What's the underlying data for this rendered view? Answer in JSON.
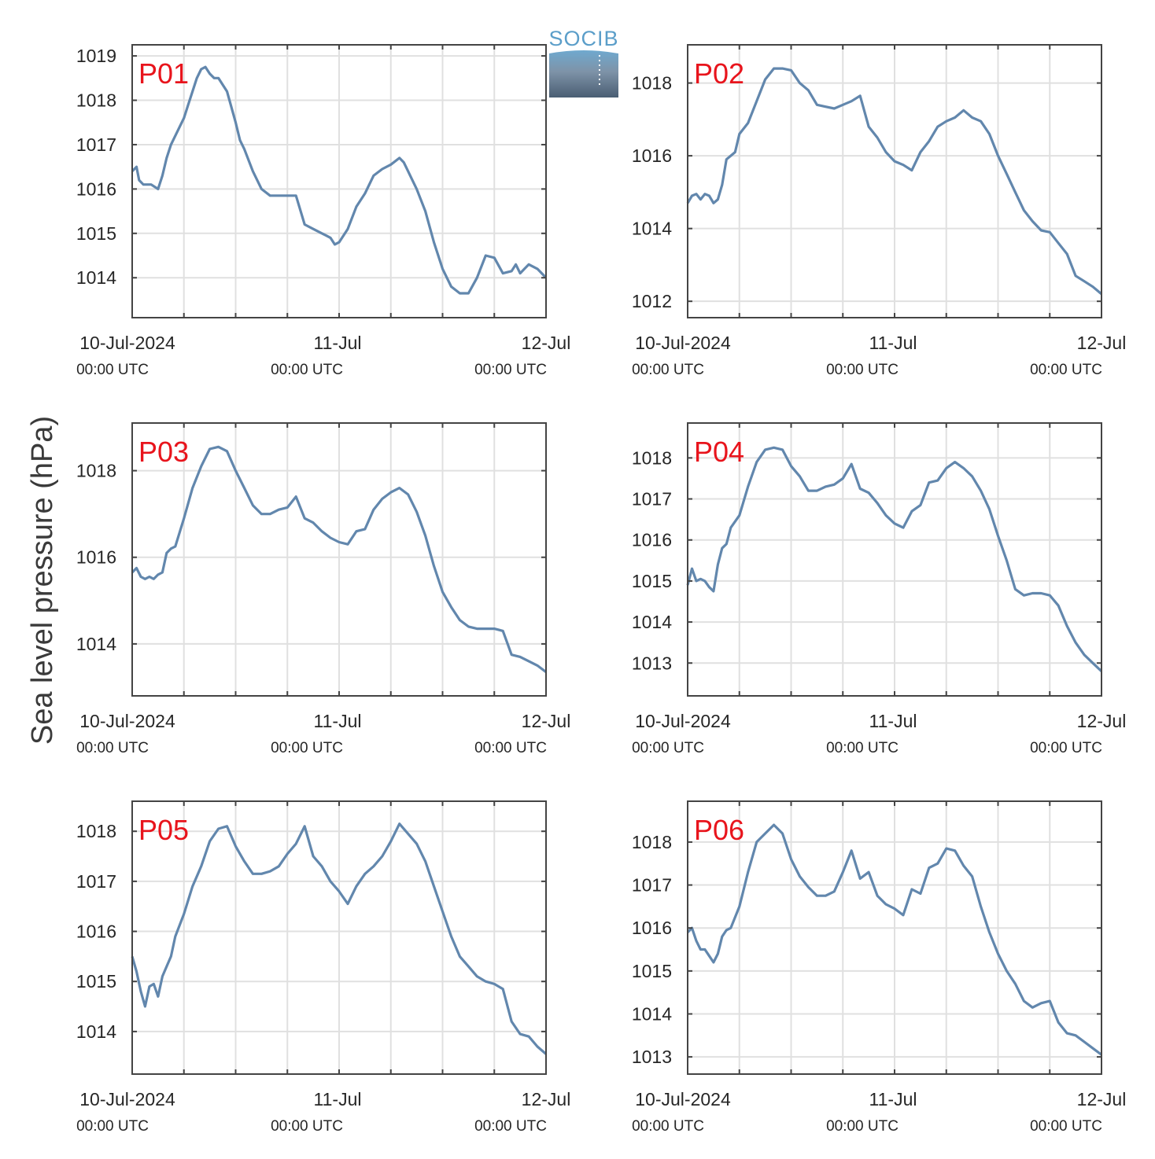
{
  "figure": {
    "ylabel": "Sea level pressure (hPa)",
    "logo_text": "SOCIB",
    "line_color": "#6287ad",
    "label_color": "#e8141c"
  },
  "chart_data": [
    {
      "type": "line",
      "panel": "P01",
      "x_ticks": [
        {
          "main": "10-Jul-2024",
          "sub": "00:00 UTC"
        },
        {
          "main": "11-Jul",
          "sub": "00:00 UTC"
        },
        {
          "main": "12-Jul",
          "sub": "00:00 UTC"
        }
      ],
      "x_tick_hours": [
        0,
        24,
        48
      ],
      "xlim_hours": [
        0,
        48
      ],
      "grid_hours": [
        6,
        12,
        18,
        24,
        30,
        36,
        42
      ],
      "ylim": [
        1013.1,
        1019.25
      ],
      "yticks": [
        1014,
        1015,
        1016,
        1017,
        1018,
        1019
      ],
      "grid": true,
      "series": [
        {
          "x": [
            0,
            0.5,
            0.8,
            1.3,
            2.2,
            3,
            3.5,
            4,
            4.5,
            5,
            6,
            6.5,
            7,
            7.5,
            8,
            8.5,
            9,
            9.5,
            10,
            11,
            12,
            12.5,
            13,
            14,
            15,
            16,
            17,
            18,
            19,
            20,
            21,
            22,
            22.5,
            23,
            23.5,
            24,
            25,
            26,
            27,
            28,
            29,
            30,
            31,
            31.5,
            32,
            32.5,
            33,
            34,
            35,
            36,
            37,
            38,
            39,
            40,
            41,
            42,
            43,
            44,
            44.5,
            45,
            45.5,
            46,
            47,
            48
          ],
          "y": [
            1016.4,
            1016.5,
            1016.2,
            1016.1,
            1016.1,
            1016.0,
            1016.3,
            1016.7,
            1017.0,
            1017.2,
            1017.6,
            1017.9,
            1018.2,
            1018.5,
            1018.7,
            1018.75,
            1018.6,
            1018.5,
            1018.5,
            1018.2,
            1017.5,
            1017.1,
            1016.9,
            1016.4,
            1016.0,
            1015.85,
            1015.85,
            1015.85,
            1015.85,
            1015.2,
            1015.1,
            1015.0,
            1014.95,
            1014.9,
            1014.75,
            1014.8,
            1015.1,
            1015.6,
            1015.9,
            1016.3,
            1016.45,
            1016.55,
            1016.7,
            1016.6,
            1016.4,
            1016.2,
            1016.0,
            1015.5,
            1014.8,
            1014.2,
            1013.8,
            1013.65,
            1013.65,
            1014.0,
            1014.5,
            1014.45,
            1014.1,
            1014.15,
            1014.3,
            1014.1,
            1014.2,
            1014.3,
            1014.2,
            1014.0
          ]
        }
      ]
    },
    {
      "type": "line",
      "panel": "P02",
      "x_ticks": [
        {
          "main": "10-Jul-2024",
          "sub": "00:00 UTC"
        },
        {
          "main": "11-Jul",
          "sub": "00:00 UTC"
        },
        {
          "main": "12-Jul",
          "sub": "00:00 UTC"
        }
      ],
      "x_tick_hours": [
        0,
        24,
        48
      ],
      "xlim_hours": [
        0,
        48
      ],
      "grid_hours": [
        6,
        12,
        18,
        24,
        30,
        36,
        42
      ],
      "ylim": [
        1011.55,
        1019.05
      ],
      "yticks": [
        1012,
        1014,
        1016,
        1018
      ],
      "grid": true,
      "series": [
        {
          "x": [
            0,
            0.5,
            1,
            1.5,
            2,
            2.5,
            3,
            3.5,
            4,
            4.5,
            5,
            5.5,
            6,
            7,
            8,
            9,
            10,
            11,
            12,
            13,
            14,
            15,
            16,
            17,
            18,
            19,
            20,
            21,
            22,
            23,
            24,
            25,
            26,
            27,
            28,
            29,
            30,
            31,
            32,
            33,
            34,
            35,
            36,
            37,
            38,
            39,
            40,
            41,
            42,
            43,
            44,
            45,
            46,
            47,
            48
          ],
          "y": [
            1014.7,
            1014.9,
            1014.95,
            1014.8,
            1014.95,
            1014.9,
            1014.7,
            1014.8,
            1015.2,
            1015.9,
            1016.0,
            1016.1,
            1016.6,
            1016.9,
            1017.5,
            1018.1,
            1018.4,
            1018.4,
            1018.35,
            1018.0,
            1017.8,
            1017.4,
            1017.35,
            1017.3,
            1017.4,
            1017.5,
            1017.65,
            1016.8,
            1016.5,
            1016.1,
            1015.85,
            1015.75,
            1015.6,
            1016.1,
            1016.4,
            1016.8,
            1016.95,
            1017.05,
            1017.25,
            1017.05,
            1016.95,
            1016.6,
            1016.0,
            1015.5,
            1015.0,
            1014.5,
            1014.2,
            1013.95,
            1013.9,
            1013.6,
            1013.3,
            1012.7,
            1012.55,
            1012.4,
            1012.2
          ]
        }
      ]
    },
    {
      "type": "line",
      "panel": "P03",
      "x_ticks": [
        {
          "main": "10-Jul-2024",
          "sub": "00:00 UTC"
        },
        {
          "main": "11-Jul",
          "sub": "00:00 UTC"
        },
        {
          "main": "12-Jul",
          "sub": "00:00 UTC"
        }
      ],
      "x_tick_hours": [
        0,
        24,
        48
      ],
      "xlim_hours": [
        0,
        48
      ],
      "grid_hours": [
        6,
        12,
        18,
        24,
        30,
        36,
        42
      ],
      "ylim": [
        1012.8,
        1019.1
      ],
      "yticks": [
        1014,
        1016,
        1018
      ],
      "grid": true,
      "series": [
        {
          "x": [
            0,
            0.5,
            1,
            1.5,
            2,
            2.5,
            3,
            3.5,
            4,
            4.5,
            5,
            6,
            7,
            8,
            9,
            10,
            11,
            12,
            13,
            14,
            15,
            16,
            17,
            18,
            19,
            20,
            21,
            22,
            23,
            24,
            25,
            26,
            27,
            28,
            29,
            30,
            31,
            32,
            33,
            34,
            35,
            36,
            37,
            38,
            39,
            40,
            41,
            42,
            43,
            44,
            45,
            46,
            47,
            48
          ],
          "y": [
            1015.65,
            1015.75,
            1015.55,
            1015.5,
            1015.55,
            1015.5,
            1015.6,
            1015.65,
            1016.1,
            1016.2,
            1016.25,
            1016.9,
            1017.6,
            1018.1,
            1018.5,
            1018.55,
            1018.45,
            1018.0,
            1017.6,
            1017.2,
            1017.0,
            1017.0,
            1017.1,
            1017.15,
            1017.4,
            1016.9,
            1016.8,
            1016.6,
            1016.45,
            1016.35,
            1016.3,
            1016.6,
            1016.65,
            1017.1,
            1017.35,
            1017.5,
            1017.6,
            1017.45,
            1017.05,
            1016.5,
            1015.8,
            1015.2,
            1014.85,
            1014.55,
            1014.4,
            1014.35,
            1014.35,
            1014.35,
            1014.3,
            1013.75,
            1013.7,
            1013.6,
            1013.5,
            1013.35
          ]
        }
      ]
    },
    {
      "type": "line",
      "panel": "P04",
      "x_ticks": [
        {
          "main": "10-Jul-2024",
          "sub": "00:00 UTC"
        },
        {
          "main": "11-Jul",
          "sub": "00:00 UTC"
        },
        {
          "main": "12-Jul",
          "sub": "00:00 UTC"
        }
      ],
      "x_tick_hours": [
        0,
        24,
        48
      ],
      "xlim_hours": [
        0,
        48
      ],
      "grid_hours": [
        6,
        12,
        18,
        24,
        30,
        36,
        42
      ],
      "ylim": [
        1012.2,
        1018.85
      ],
      "yticks": [
        1013,
        1014,
        1015,
        1016,
        1017,
        1018
      ],
      "grid": true,
      "series": [
        {
          "x": [
            0,
            0.5,
            1,
            1.5,
            2,
            2.5,
            3,
            3.5,
            4,
            4.5,
            5,
            6,
            7,
            8,
            9,
            10,
            11,
            12,
            13,
            14,
            15,
            16,
            17,
            18,
            19,
            20,
            21,
            22,
            23,
            24,
            25,
            26,
            27,
            28,
            29,
            30,
            31,
            32,
            33,
            34,
            35,
            36,
            37,
            38,
            39,
            40,
            41,
            42,
            43,
            44,
            45,
            46,
            47,
            48
          ],
          "y": [
            1014.9,
            1015.3,
            1015.0,
            1015.05,
            1015.0,
            1014.85,
            1014.75,
            1015.4,
            1015.8,
            1015.9,
            1016.3,
            1016.6,
            1017.3,
            1017.9,
            1018.2,
            1018.25,
            1018.2,
            1017.8,
            1017.55,
            1017.2,
            1017.2,
            1017.3,
            1017.35,
            1017.5,
            1017.85,
            1017.25,
            1017.15,
            1016.9,
            1016.6,
            1016.4,
            1016.3,
            1016.7,
            1016.85,
            1017.4,
            1017.45,
            1017.75,
            1017.9,
            1017.75,
            1017.55,
            1017.2,
            1016.75,
            1016.1,
            1015.5,
            1014.8,
            1014.65,
            1014.7,
            1014.7,
            1014.65,
            1014.4,
            1013.9,
            1013.5,
            1013.2,
            1013.0,
            1012.8
          ]
        }
      ]
    },
    {
      "type": "line",
      "panel": "P05",
      "x_ticks": [
        {
          "main": "10-Jul-2024",
          "sub": "00:00 UTC"
        },
        {
          "main": "11-Jul",
          "sub": "00:00 UTC"
        },
        {
          "main": "12-Jul",
          "sub": "00:00 UTC"
        }
      ],
      "x_tick_hours": [
        0,
        24,
        48
      ],
      "xlim_hours": [
        0,
        48
      ],
      "grid_hours": [
        6,
        12,
        18,
        24,
        30,
        36,
        42
      ],
      "ylim": [
        1013.15,
        1018.6
      ],
      "yticks": [
        1014,
        1015,
        1016,
        1017,
        1018
      ],
      "grid": true,
      "series": [
        {
          "x": [
            0,
            0.5,
            1,
            1.5,
            2,
            2.5,
            3,
            3.5,
            4,
            4.5,
            5,
            6,
            7,
            8,
            9,
            10,
            11,
            12,
            13,
            14,
            15,
            16,
            17,
            18,
            19,
            20,
            21,
            22,
            23,
            24,
            25,
            26,
            27,
            28,
            29,
            30,
            31,
            32,
            33,
            34,
            35,
            36,
            37,
            38,
            39,
            40,
            41,
            42,
            43,
            44,
            45,
            46,
            47,
            48
          ],
          "y": [
            1015.5,
            1015.2,
            1014.8,
            1014.5,
            1014.9,
            1014.95,
            1014.7,
            1015.1,
            1015.3,
            1015.5,
            1015.9,
            1016.35,
            1016.9,
            1017.3,
            1017.8,
            1018.05,
            1018.1,
            1017.7,
            1017.4,
            1017.15,
            1017.15,
            1017.2,
            1017.3,
            1017.55,
            1017.75,
            1018.1,
            1017.5,
            1017.3,
            1017.0,
            1016.8,
            1016.55,
            1016.9,
            1017.15,
            1017.3,
            1017.5,
            1017.8,
            1018.15,
            1017.95,
            1017.75,
            1017.4,
            1016.9,
            1016.4,
            1015.9,
            1015.5,
            1015.3,
            1015.1,
            1015.0,
            1014.95,
            1014.85,
            1014.2,
            1013.95,
            1013.9,
            1013.7,
            1013.55
          ]
        }
      ]
    },
    {
      "type": "line",
      "panel": "P06",
      "x_ticks": [
        {
          "main": "10-Jul-2024",
          "sub": "00:00 UTC"
        },
        {
          "main": "11-Jul",
          "sub": "00:00 UTC"
        },
        {
          "main": "12-Jul",
          "sub": "00:00 UTC"
        }
      ],
      "x_tick_hours": [
        0,
        24,
        48
      ],
      "xlim_hours": [
        0,
        48
      ],
      "grid_hours": [
        6,
        12,
        18,
        24,
        30,
        36,
        42
      ],
      "ylim": [
        1012.6,
        1018.95
      ],
      "yticks": [
        1013,
        1014,
        1015,
        1016,
        1017,
        1018
      ],
      "grid": true,
      "series": [
        {
          "x": [
            0,
            0.5,
            1,
            1.5,
            2,
            2.5,
            3,
            3.5,
            4,
            4.5,
            5,
            6,
            7,
            8,
            9,
            10,
            11,
            12,
            13,
            14,
            15,
            16,
            17,
            18,
            19,
            20,
            21,
            22,
            23,
            24,
            25,
            26,
            27,
            28,
            29,
            30,
            31,
            32,
            33,
            34,
            35,
            36,
            37,
            38,
            39,
            40,
            41,
            42,
            43,
            44,
            45,
            46,
            47,
            48
          ],
          "y": [
            1015.9,
            1016.0,
            1015.7,
            1015.5,
            1015.5,
            1015.35,
            1015.2,
            1015.4,
            1015.8,
            1015.95,
            1016.0,
            1016.5,
            1017.3,
            1018.0,
            1018.2,
            1018.4,
            1018.2,
            1017.6,
            1017.2,
            1016.95,
            1016.75,
            1016.75,
            1016.85,
            1017.3,
            1017.8,
            1017.15,
            1017.3,
            1016.75,
            1016.55,
            1016.45,
            1016.3,
            1016.9,
            1016.8,
            1017.4,
            1017.5,
            1017.85,
            1017.8,
            1017.45,
            1017.2,
            1016.5,
            1015.9,
            1015.4,
            1015.0,
            1014.7,
            1014.3,
            1014.15,
            1014.25,
            1014.3,
            1013.8,
            1013.55,
            1013.5,
            1013.35,
            1013.2,
            1013.05
          ]
        }
      ]
    }
  ]
}
